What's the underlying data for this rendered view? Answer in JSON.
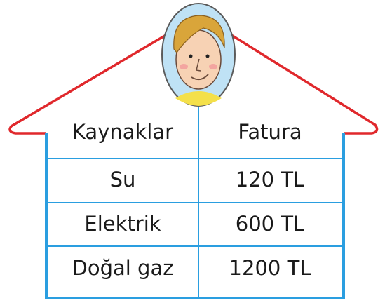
{
  "table": {
    "headers": [
      "Kaynaklar",
      "Fatura"
    ],
    "rows": [
      [
        "Su",
        "120 TL"
      ],
      [
        "Elektrik",
        "600 TL"
      ],
      [
        "Doğal gaz",
        "1200 TL"
      ]
    ]
  }
}
